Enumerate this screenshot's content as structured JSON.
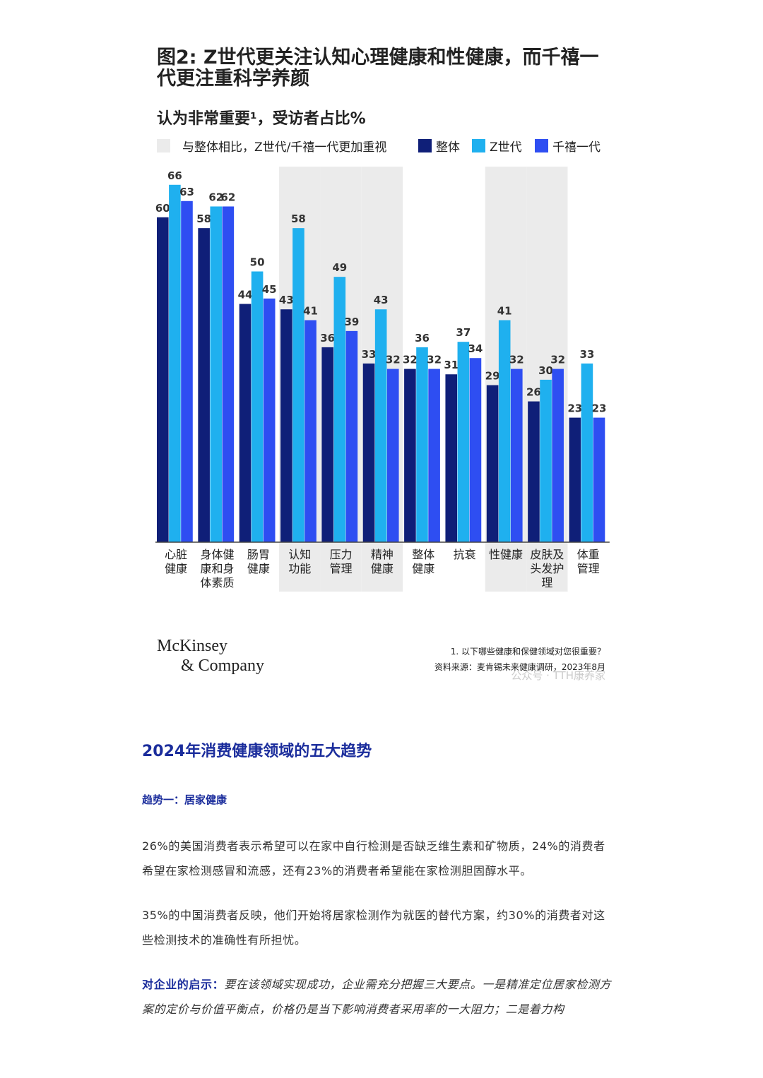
{
  "chart_data": {
    "type": "bar",
    "title": "图2: Z世代更关注认知心理健康和性健康，而千禧一\n代更注重科学养颜",
    "subtitle": "认为非常重要¹，受访者占比%",
    "highlight_label": "与整体相比，Z世代/千禧一代更加重视",
    "highlight_color": "#ebebeb",
    "categories": [
      "心脏\n健康",
      "身体健\n康和身\n体素质",
      "肠胃\n健康",
      "认知\n功能",
      "压力\n管理",
      "精神\n健康",
      "整体\n健康",
      "抗衰",
      "性健康",
      "皮肤及\n头发护\n理",
      "体重\n管理"
    ],
    "highlighted": [
      false,
      false,
      false,
      true,
      true,
      true,
      false,
      false,
      true,
      true,
      false
    ],
    "series": [
      {
        "name": "整体",
        "color": "#0f1f78",
        "values": [
          60,
          58,
          44,
          43,
          36,
          33,
          32,
          31,
          29,
          26,
          23
        ]
      },
      {
        "name": "Z世代",
        "color": "#1fb0ef",
        "values": [
          66,
          62,
          50,
          58,
          49,
          43,
          36,
          37,
          41,
          30,
          33
        ]
      },
      {
        "name": "千禧一代",
        "color": "#2e4ef2",
        "values": [
          63,
          62,
          45,
          41,
          39,
          32,
          32,
          34,
          32,
          32,
          23
        ]
      }
    ],
    "footnote": "1.   以下哪些健康和保健领域对您很重要？",
    "source": "资料来源：麦肯锡未来健康调研，2023年8月",
    "logo": [
      "McKinsey",
      "& Company"
    ],
    "watermark": "公众号 · TTH康养家"
  },
  "article": {
    "heading": "2024年消费健康领域的五大趋势",
    "subheading": "趋势一：居家健康",
    "paragraphs": [
      "26%的美国消费者表示希望可以在家中自行检测是否缺乏维生素和矿物质，24%的消费者希望在家检测感冒和流感，还有23%的消费者希望能在家检测胆固醇水平。",
      "35%的中国消费者反映，他们开始将居家检测作为就医的替代方案，约30%的消费者对这些检测技术的准确性有所担忧。"
    ],
    "insight_label": "对企业的启示：",
    "insight_text": "要在该领域实现成功，企业需充分把握三大要点。一是精准定位居家检测方案的定价与价值平衡点，价格仍是当下影响消费者采用率的一大阻力；二是着力构"
  }
}
